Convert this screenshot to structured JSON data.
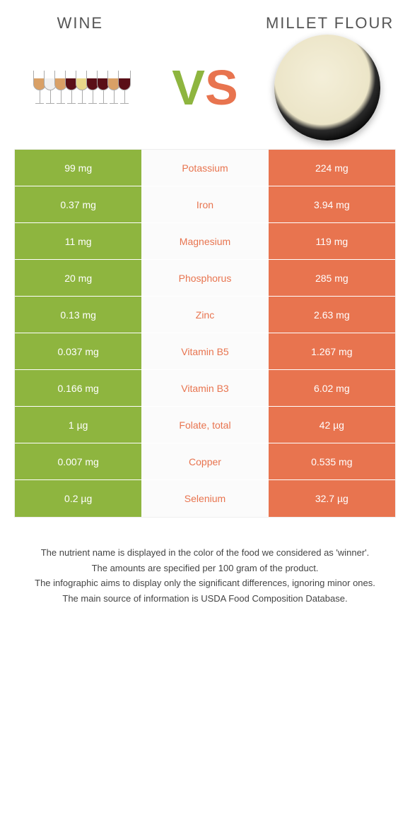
{
  "colors": {
    "left": "#8eb53f",
    "right": "#e8744f",
    "background": "#ffffff",
    "text": "#333333",
    "footnote": "#444444"
  },
  "header": {
    "left_title": "Wine",
    "right_title": "Millet flour",
    "vs_label_v": "V",
    "vs_label_s": "S"
  },
  "wine_glass_colors": [
    "#d9a066",
    "#f0f0f0",
    "#d9a066",
    "#5a0f17",
    "#e8d88a",
    "#5a0f17",
    "#5a0f17",
    "#d9a066",
    "#5a0f17"
  ],
  "table": {
    "rows": [
      {
        "left": "99 mg",
        "label": "Potassium",
        "right": "224 mg",
        "winner": "right"
      },
      {
        "left": "0.37 mg",
        "label": "Iron",
        "right": "3.94 mg",
        "winner": "right"
      },
      {
        "left": "11 mg",
        "label": "Magnesium",
        "right": "119 mg",
        "winner": "right"
      },
      {
        "left": "20 mg",
        "label": "Phosphorus",
        "right": "285 mg",
        "winner": "right"
      },
      {
        "left": "0.13 mg",
        "label": "Zinc",
        "right": "2.63 mg",
        "winner": "right"
      },
      {
        "left": "0.037 mg",
        "label": "Vitamin B5",
        "right": "1.267 mg",
        "winner": "right"
      },
      {
        "left": "0.166 mg",
        "label": "Vitamin B3",
        "right": "6.02 mg",
        "winner": "right"
      },
      {
        "left": "1 µg",
        "label": "Folate, total",
        "right": "42 µg",
        "winner": "right"
      },
      {
        "left": "0.007 mg",
        "label": "Copper",
        "right": "0.535 mg",
        "winner": "right"
      },
      {
        "left": "0.2 µg",
        "label": "Selenium",
        "right": "32.7 µg",
        "winner": "right"
      }
    ]
  },
  "footnotes": [
    "The nutrient name is displayed in the color of the food we considered as 'winner'.",
    "The amounts are specified per 100 gram of the product.",
    "The infographic aims to display only the significant differences, ignoring minor ones.",
    "The main source of information is USDA Food Composition Database."
  ]
}
